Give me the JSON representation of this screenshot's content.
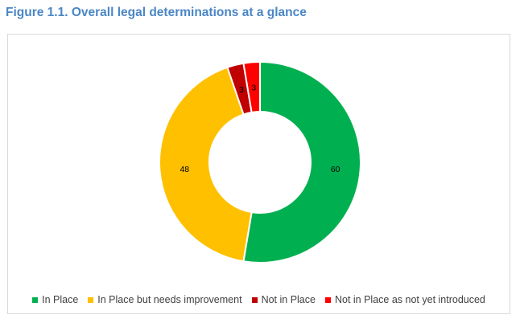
{
  "figure": {
    "title": "Figure 1.1. Overall legal determinations at a glance"
  },
  "colors": {
    "title": "#4a86c5",
    "in_place": "#00b050",
    "needs_improvement": "#ffc000",
    "not_in_place": "#c00000",
    "not_yet_introduced": "#ff0000"
  },
  "chart_data": {
    "type": "pie",
    "variant": "doughnut",
    "title": "",
    "categories": [
      "In Place",
      "In Place but needs improvement",
      "Not in Place",
      "Not in Place as not yet introduced"
    ],
    "values": [
      60,
      48,
      3,
      3
    ],
    "colors": [
      "#00b050",
      "#ffc000",
      "#c00000",
      "#ff0000"
    ],
    "data_labels": [
      "60",
      "48",
      "3",
      "3"
    ],
    "legend_position": "bottom",
    "start_angle_deg": 0,
    "direction": "clockwise"
  }
}
